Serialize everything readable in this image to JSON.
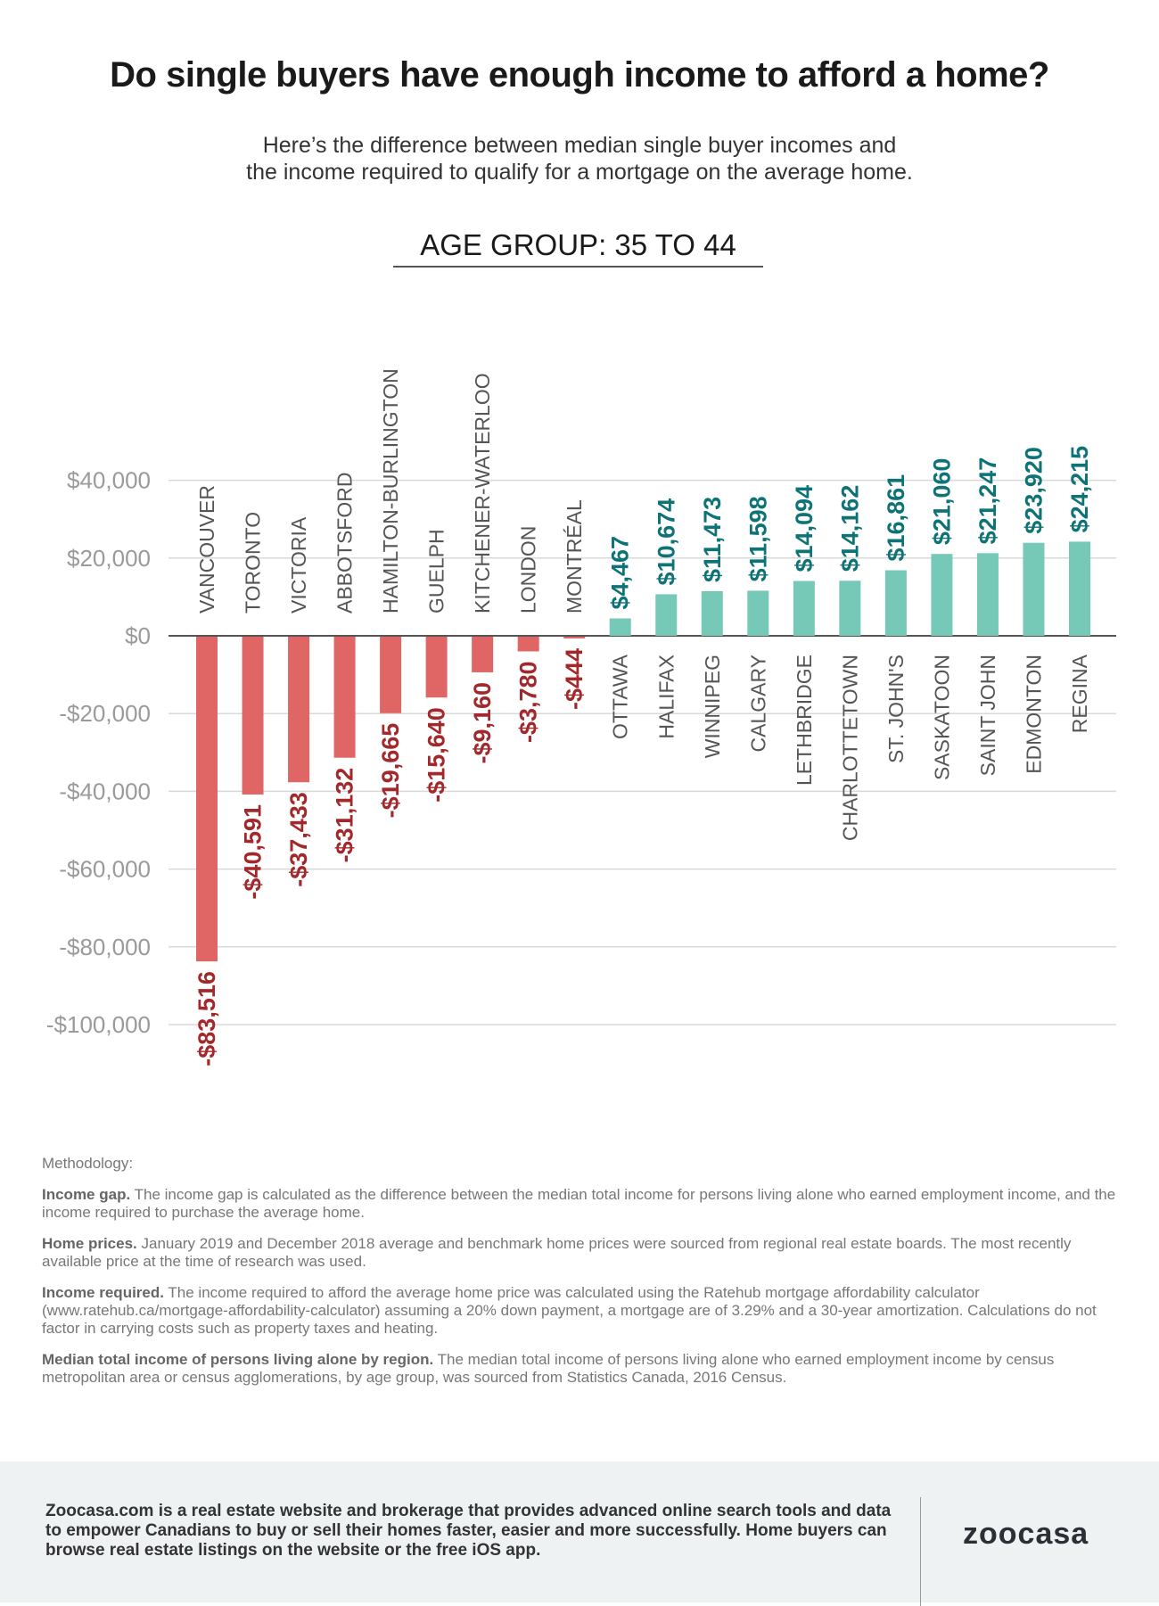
{
  "header": {
    "title": "Do single buyers have enough income to afford a home?",
    "subtitle_line1": "Here’s the difference between median single buyer incomes and",
    "subtitle_line2": "the income required to qualify for a mortgage on the average home."
  },
  "chart_data": {
    "type": "bar",
    "title": "AGE GROUP: 35 TO 44",
    "xlabel": "",
    "ylabel": "",
    "ylim": [
      -100000,
      40000
    ],
    "yticks": [
      40000,
      20000,
      0,
      -20000,
      -40000,
      -60000,
      -80000,
      -100000
    ],
    "ytick_labels": [
      "$40,000",
      "$20,000",
      "$0",
      "-$20,000",
      "-$40,000",
      "-$60,000",
      "-$80,000",
      "-$100,000"
    ],
    "grid": true,
    "categories": [
      "VANCOUVER",
      "TORONTO",
      "VICTORIA",
      "ABBOTSFORD",
      "HAMILTON-BURLINGTON",
      "GUELPH",
      "KITCHENER-WATERLOO",
      "LONDON",
      "MONTRÉAL",
      "OTTAWA",
      "HALIFAX",
      "WINNIPEG",
      "CALGARY",
      "LETHBRIDGE",
      "CHARLOTTETOWN",
      "ST. JOHN'S",
      "SASKATOON",
      "SAINT JOHN",
      "EDMONTON",
      "REGINA"
    ],
    "values": [
      -83516,
      -40591,
      -37433,
      -31132,
      -19665,
      -15640,
      -9160,
      -3780,
      -444,
      4467,
      10674,
      11473,
      11598,
      14094,
      14162,
      16861,
      21060,
      21247,
      23920,
      24215
    ],
    "value_labels": [
      "-$83,516",
      "-$40,591",
      "-$37,433",
      "-$31,132",
      "-$19,665",
      "-$15,640",
      "-$9,160",
      "-$3,780",
      "-$444",
      "$4,467",
      "$10,674",
      "$11,473",
      "$11,598",
      "$14,094",
      "$14,162",
      "$16,861",
      "$21,060",
      "$21,247",
      "$23,920",
      "$24,215"
    ],
    "colors": {
      "negative_bar": "#e06666",
      "negative_label": "#a3282b",
      "positive_bar": "#76c9b6",
      "positive_label": "#0e7376",
      "axis_label": "#9a9a9a",
      "category_label": "#555555"
    }
  },
  "methodology": {
    "heading": "Methodology:",
    "items": [
      {
        "term": "Income gap.",
        "text": " The income gap is calculated as the difference between the median total income for persons living alone who earned employment income, and the income required to purchase the average home."
      },
      {
        "term": "Home prices.",
        "text": " January 2019 and December 2018 average and benchmark home prices were sourced from regional real estate boards. The most recently available price at the time of research was used."
      },
      {
        "term": "Income required.",
        "text": " The income required to afford the average home price was calculated using the Ratehub mortgage affordability calculator (www.ratehub.ca/mortgage-affordability-calculator) assuming a 20% down payment, a mortgage are of 3.29% and a 30-year amortization. Calculations do not factor in carrying costs such as property taxes and heating."
      },
      {
        "term": "Median total income of persons living alone by region.",
        "text": " The median total income of persons living alone who earned employment income by census metropolitan area or census agglomerations, by age group, was sourced from Statistics Canada, 2016 Census."
      }
    ]
  },
  "footer": {
    "text": "Zoocasa.com is a real estate website and brokerage that provides advanced online search tools and data to empower Canadians to buy or sell their homes faster, easier and more successfully. Home buyers can browse real estate listings on the website or the free iOS app.",
    "logo": "zoocasa"
  }
}
